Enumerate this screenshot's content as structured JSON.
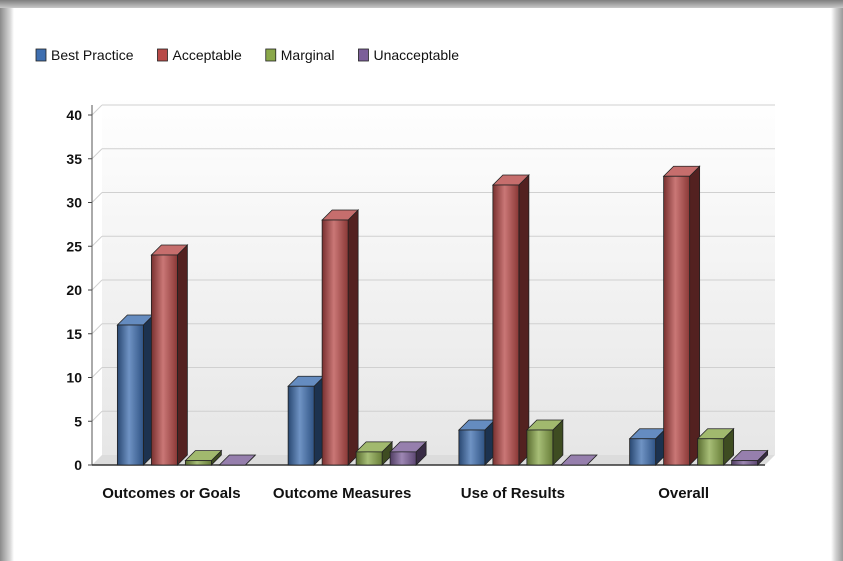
{
  "chart_data": {
    "type": "bar",
    "categories": [
      "Outcomes or Goals",
      "Outcome Measures",
      "Use of Results",
      "Overall"
    ],
    "series": [
      {
        "name": "Best Practice",
        "values": [
          16,
          9,
          4,
          3
        ],
        "color": "#3f6fb0"
      },
      {
        "name": "Acceptable",
        "values": [
          24,
          28,
          32,
          33
        ],
        "color": "#b84a48"
      },
      {
        "name": "Marginal",
        "values": [
          0.5,
          1.5,
          4,
          3
        ],
        "color": "#8aa84a"
      },
      {
        "name": "Unacceptable",
        "values": [
          0,
          1.5,
          0,
          0.5
        ],
        "color": "#7c5f99"
      }
    ],
    "y_ticks": [
      0,
      5,
      10,
      15,
      20,
      25,
      30,
      35,
      40
    ],
    "ylim": [
      0,
      40
    ],
    "legend_position": "top-left",
    "grid": true,
    "style": "3d-bar"
  }
}
